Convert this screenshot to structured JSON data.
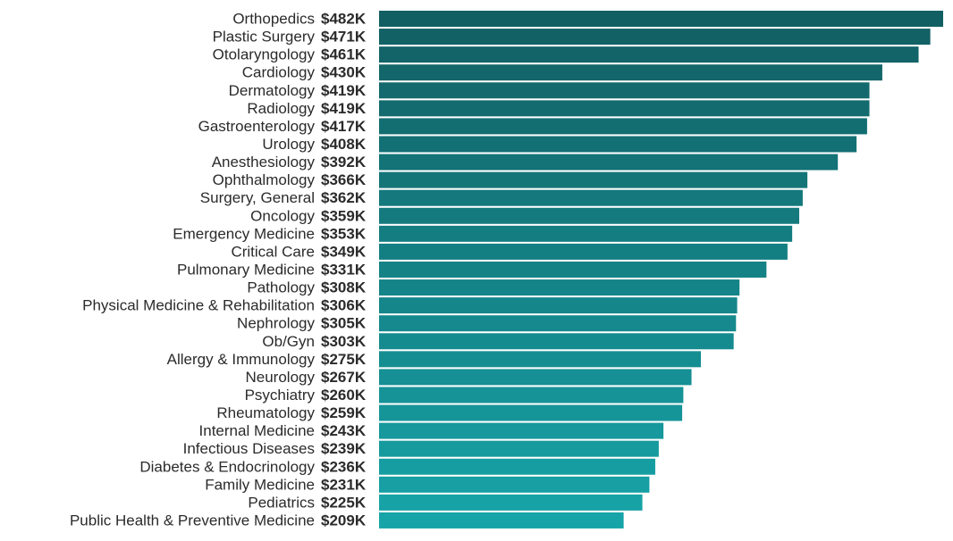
{
  "chart_data": {
    "type": "bar",
    "orientation": "horizontal",
    "title": "",
    "xlabel": "",
    "ylabel": "",
    "grid": false,
    "legend": "none",
    "xlim": [
      0,
      482
    ],
    "value_unit": "$K",
    "colors": {
      "top": "#125f63",
      "bottom": "#17a4a8"
    },
    "categories": [
      "Orthopedics",
      "Plastic Surgery",
      "Otolaryngology",
      "Cardiology",
      "Dermatology",
      "Radiology",
      "Gastroenterology",
      "Urology",
      "Anesthesiology",
      "Ophthalmology",
      "Surgery, General",
      "Oncology",
      "Emergency Medicine",
      "Critical Care",
      "Pulmonary Medicine",
      "Pathology",
      "Physical Medicine & Rehabilitation",
      "Nephrology",
      "Ob/Gyn",
      "Allergy & Immunology",
      "Neurology",
      "Psychiatry",
      "Rheumatology",
      "Internal Medicine",
      "Infectious Diseases",
      "Diabetes & Endocrinology",
      "Family Medicine",
      "Pediatrics",
      "Public Health & Preventive Medicine"
    ],
    "values": [
      482,
      471,
      461,
      430,
      419,
      419,
      417,
      408,
      392,
      366,
      362,
      359,
      353,
      349,
      331,
      308,
      306,
      305,
      303,
      275,
      267,
      260,
      259,
      243,
      239,
      236,
      231,
      225,
      209
    ],
    "value_labels": [
      "$482K",
      "$471K",
      "$461K",
      "$430K",
      "$419K",
      "$419K",
      "$417K",
      "$408K",
      "$392K",
      "$366K",
      "$362K",
      "$359K",
      "$353K",
      "$349K",
      "$331K",
      "$308K",
      "$306K",
      "$305K",
      "$303K",
      "$275K",
      "$267K",
      "$260K",
      "$259K",
      "$243K",
      "$239K",
      "$236K",
      "$231K",
      "$225K",
      "$209K"
    ]
  }
}
